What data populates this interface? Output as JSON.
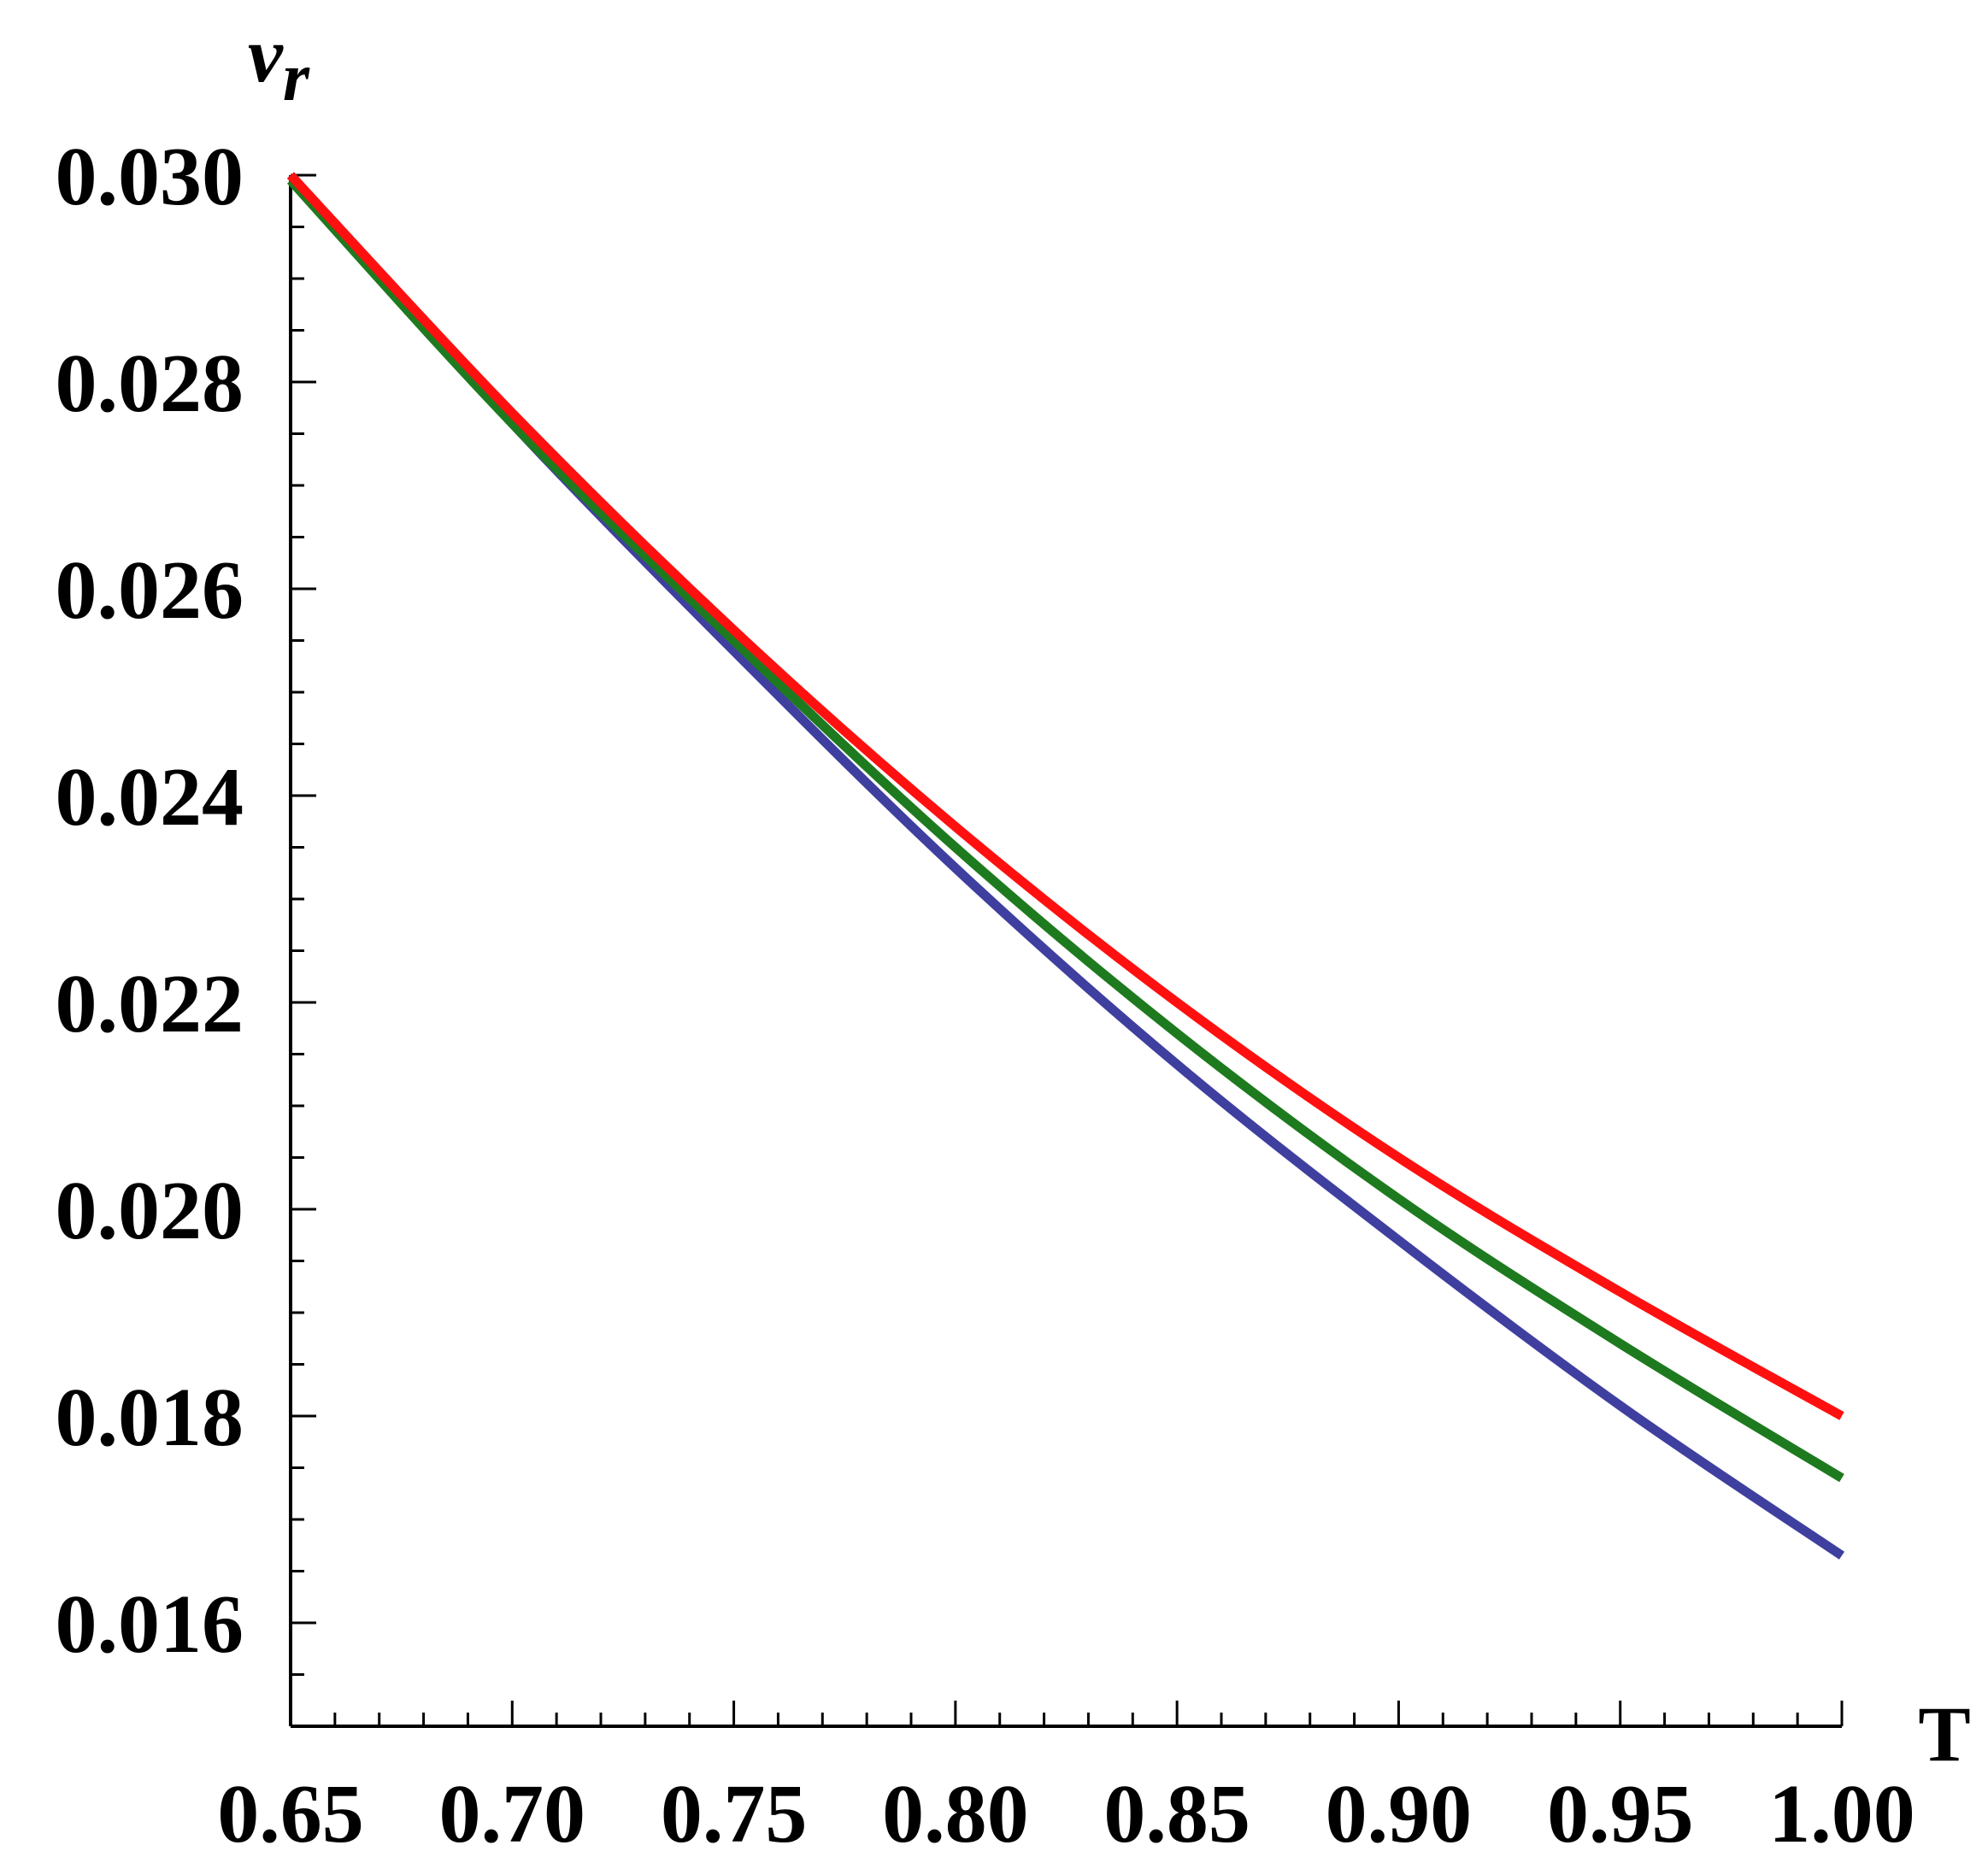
{
  "chart_data": {
    "type": "line",
    "xlabel": "T",
    "ylabel_main": "v",
    "ylabel_sub": "r",
    "xlim": [
      0.65,
      1.0
    ],
    "ylim": [
      0.015,
      0.03
    ],
    "xticks": [
      "0.65",
      "0.70",
      "0.75",
      "0.80",
      "0.85",
      "0.90",
      "0.95",
      "1.00"
    ],
    "yticks": [
      "0.016",
      "0.018",
      "0.020",
      "0.022",
      "0.024",
      "0.026",
      "0.028",
      "0.030"
    ],
    "grid": false,
    "legend": "none",
    "series": [
      {
        "color": "#3f3f9f",
        "x": [
          0.65,
          0.7,
          0.75,
          0.8,
          0.85,
          0.9,
          0.95,
          1.0
        ],
        "y": [
          0.03,
          0.0276,
          0.0254,
          0.0233,
          0.0214,
          0.0197,
          0.0181,
          0.01665
        ]
      },
      {
        "color": "#1e7a1e",
        "x": [
          0.65,
          0.7,
          0.75,
          0.8,
          0.85,
          0.9,
          0.95,
          1.0
        ],
        "y": [
          0.02995,
          0.0276,
          0.0255,
          0.0235,
          0.0217,
          0.0201,
          0.0187,
          0.0174
        ]
      },
      {
        "color": "#ff1010",
        "x": [
          0.65,
          0.7,
          0.75,
          0.8,
          0.85,
          0.9,
          0.95,
          1.0
        ],
        "y": [
          0.03,
          0.0277,
          0.0256,
          0.0237,
          0.022,
          0.0205,
          0.0192,
          0.018
        ]
      }
    ]
  }
}
